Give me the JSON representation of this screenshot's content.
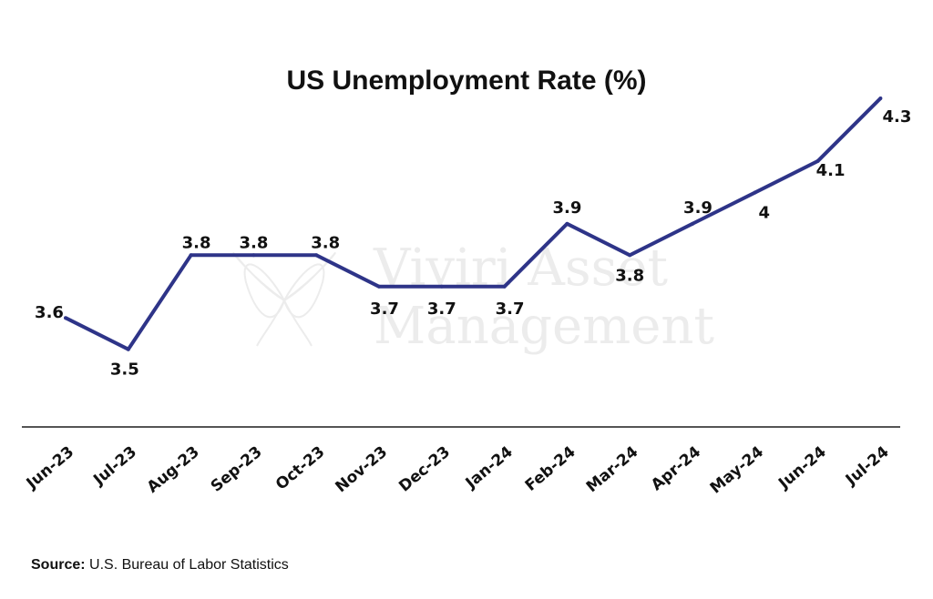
{
  "chart_data": {
    "type": "line",
    "title": "US Unemployment Rate (%)",
    "categories": [
      "Jun-23",
      "Jul-23",
      "Aug-23",
      "Sep-23",
      "Oct-23",
      "Nov-23",
      "Dec-23",
      "Jan-24",
      "Feb-24",
      "Mar-24",
      "Apr-24",
      "May-24",
      "Jun-24",
      "Jul-24"
    ],
    "series": [
      {
        "values": [
          3.6,
          3.5,
          3.8,
          3.8,
          3.8,
          3.7,
          3.7,
          3.7,
          3.9,
          3.8,
          3.9,
          4.0,
          4.1,
          4.3
        ]
      }
    ],
    "data_labels": [
      "3.6",
      "3.5",
      "3.8",
      "3.8",
      "3.8",
      "3.7",
      "3.7",
      "3.7",
      "3.9",
      "3.8",
      "3.9",
      "4",
      "4.1",
      "4.3"
    ],
    "ylim": [
      3.0,
      4.3
    ],
    "grid": false,
    "line_color": "#2e3488"
  },
  "watermark": {
    "line1": "Viviri Asset",
    "line2": "Management",
    "icon": "butterfly-logo-icon"
  },
  "source": {
    "label": "Source:",
    "text": "U.S. Bureau of Labor Statistics"
  },
  "colors": {
    "axis": "#555555",
    "watermark": "#ececec"
  }
}
